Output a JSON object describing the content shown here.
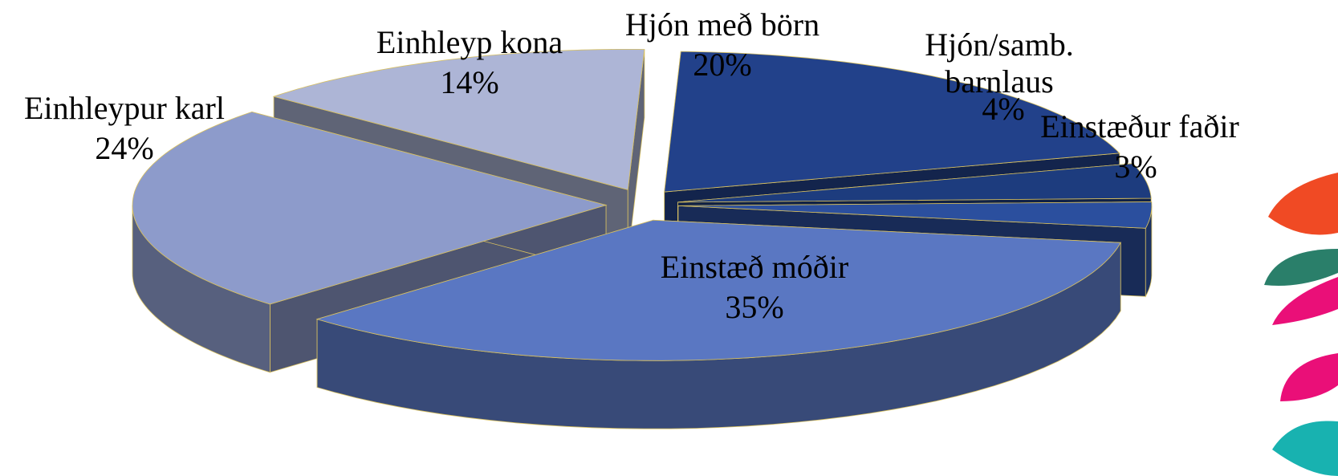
{
  "chart_data": {
    "type": "pie",
    "categories": [
      "Hjón með börn",
      "Hjón/samb. barnlaus",
      "Einstæður faðir",
      "Einstæð móðir",
      "Einhleypur karl",
      "Einhleyp kona"
    ],
    "values": [
      20,
      4,
      3,
      35,
      24,
      14
    ],
    "value_labels": [
      "20%",
      "4%",
      "3%",
      "35%",
      "24%",
      "14%"
    ],
    "colors": [
      "#22418a",
      "#1d3c7e",
      "#2b4f9e",
      "#5a77c2",
      "#8d9bcb",
      "#adb5d6"
    ]
  }
}
